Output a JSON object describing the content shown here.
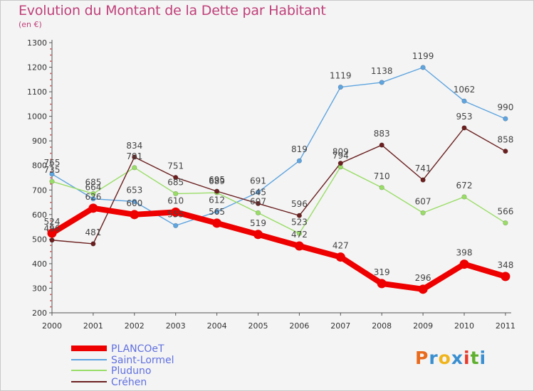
{
  "title": "Evolution du Montant de la Dette par Habitant",
  "unit": "(en €)",
  "brand": {
    "letters": [
      "P",
      "r",
      "o",
      "x",
      "i",
      "t",
      "i"
    ],
    "colors": [
      "#e86a1c",
      "#3a8fd0",
      "#f0b51c",
      "#3a8fd0",
      "#e83a2c",
      "#5fb02e",
      "#3a8fd0"
    ]
  },
  "chart_data": {
    "type": "line",
    "x": [
      "2000",
      "2001",
      "2002",
      "2003",
      "2004",
      "2005",
      "2006",
      "2007",
      "2008",
      "2009",
      "2010",
      "2011"
    ],
    "ylim": [
      200,
      1300
    ],
    "yticks": [
      200,
      300,
      400,
      500,
      600,
      700,
      800,
      900,
      1000,
      1100,
      1200,
      1300
    ],
    "grid": false,
    "legend_position": "bottom-left",
    "series": [
      {
        "name": "PLANCOeT",
        "color": "#ee0000",
        "emphasis": true,
        "values": [
          524,
          626,
          600,
          610,
          565,
          519,
          472,
          427,
          319,
          296,
          398,
          348
        ],
        "labels": [
          "524",
          "626",
          "600",
          "610",
          "565",
          "519",
          "472",
          "427",
          "319",
          "296",
          "398",
          "348"
        ]
      },
      {
        "name": "Saint-Lormel",
        "color": "#5ea4df",
        "values": [
          765,
          664,
          653,
          555,
          612,
          691,
          819,
          1119,
          1138,
          1199,
          1062,
          990
        ],
        "labels": [
          "765",
          "664",
          "653",
          "555",
          "612",
          "691",
          "819",
          "1119",
          "1138",
          "1199",
          "1062",
          "990"
        ]
      },
      {
        "name": "Pluduno",
        "color": "#99dd66",
        "values": [
          735,
          685,
          791,
          685,
          689,
          607,
          523,
          794,
          710,
          607,
          672,
          566
        ],
        "labels": [
          "735",
          "685",
          "791",
          "685",
          "689",
          "607",
          "523",
          "794",
          "710",
          "607",
          "672",
          "566"
        ]
      },
      {
        "name": "Créhen",
        "color": "#6b1f1f",
        "values": [
          496,
          481,
          834,
          751,
          695,
          645,
          596,
          809,
          883,
          741,
          953,
          858
        ],
        "labels": [
          "496",
          "481",
          "834",
          "751",
          "695",
          "645",
          "596",
          "809",
          "883",
          "741",
          "953",
          "858"
        ]
      }
    ]
  }
}
